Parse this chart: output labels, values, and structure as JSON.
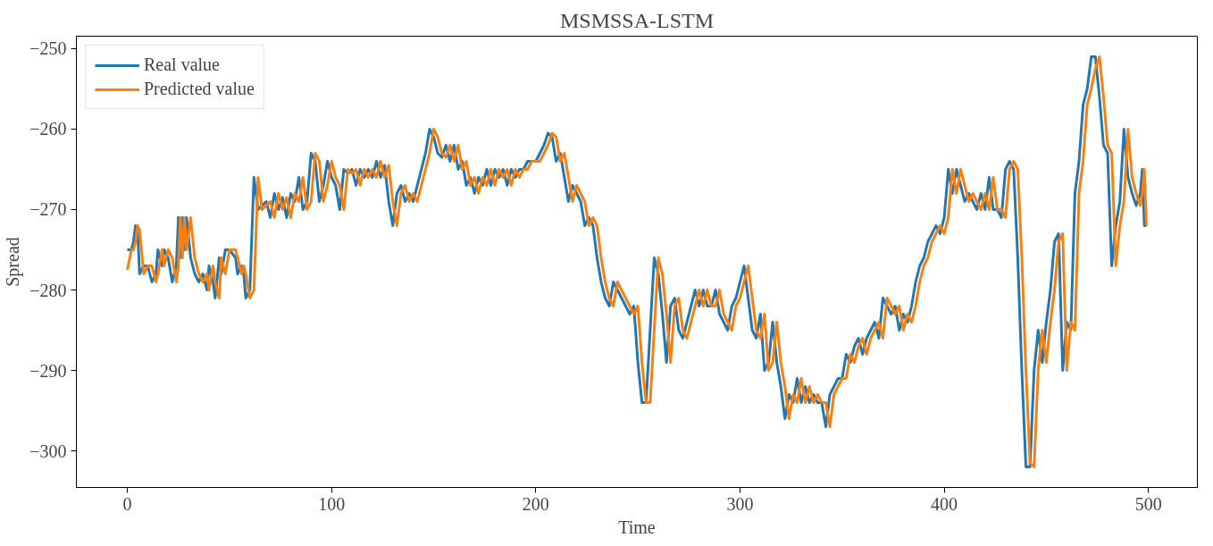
{
  "chart_data": {
    "type": "line",
    "title": "MSMSSA-LSTM",
    "xlabel": "Time",
    "ylabel": "Spread",
    "x": [
      0,
      2,
      3,
      4,
      5,
      6,
      8,
      10,
      12,
      14,
      15,
      17,
      18,
      20,
      22,
      24,
      25,
      26,
      27,
      28,
      29,
      31,
      33,
      35,
      37,
      39,
      40,
      42,
      43,
      45,
      46,
      48,
      50,
      53,
      54,
      56,
      57,
      58,
      60,
      62,
      64,
      66,
      68,
      70,
      72,
      74,
      76,
      78,
      80,
      82,
      84,
      86,
      88,
      90,
      92,
      94,
      96,
      98,
      100,
      102,
      104,
      106,
      108,
      110,
      112,
      114,
      116,
      118,
      120,
      122,
      124,
      126,
      128,
      130,
      132,
      134,
      136,
      138,
      140,
      142,
      144,
      146,
      148,
      150,
      152,
      154,
      156,
      158,
      160,
      162,
      164,
      166,
      168,
      170,
      172,
      174,
      176,
      178,
      180,
      182,
      184,
      186,
      188,
      190,
      192,
      194,
      196,
      198,
      200,
      202,
      204,
      206,
      208,
      210,
      212,
      214,
      216,
      218,
      220,
      222,
      224,
      226,
      228,
      230,
      232,
      234,
      236,
      238,
      240,
      242,
      244,
      246,
      248,
      250,
      252,
      254,
      256,
      258,
      260,
      262,
      264,
      266,
      268,
      270,
      272,
      274,
      276,
      278,
      280,
      282,
      284,
      286,
      288,
      290,
      292,
      294,
      296,
      298,
      300,
      302,
      304,
      306,
      308,
      310,
      312,
      314,
      316,
      318,
      320,
      322,
      324,
      326,
      328,
      330,
      332,
      334,
      336,
      338,
      340,
      342,
      344,
      346,
      348,
      350,
      352,
      354,
      356,
      358,
      360,
      362,
      364,
      366,
      368,
      370,
      372,
      374,
      376,
      378,
      380,
      382,
      384,
      386,
      388,
      390,
      392,
      394,
      396,
      398,
      400,
      402,
      404,
      406,
      408,
      410,
      412,
      414,
      416,
      418,
      420,
      422,
      424,
      426,
      428,
      430,
      432,
      434,
      436,
      438,
      440,
      442,
      444,
      446,
      448,
      450,
      452,
      454,
      456,
      458,
      460,
      462,
      464,
      466,
      468,
      470,
      472,
      474,
      476,
      478,
      480,
      482,
      484,
      486,
      488,
      490,
      492,
      494,
      496,
      497,
      498,
      499
    ],
    "series": [
      {
        "name": "Real value",
        "color": "#1f77b4",
        "values": [
          -275,
          -275,
          -274,
          -272,
          -272.5,
          -278,
          -277,
          -277,
          -279,
          -278,
          -275,
          -277,
          -275,
          -276,
          -279,
          -277,
          -271,
          -276,
          -271,
          -275,
          -271,
          -276,
          -278,
          -279,
          -278,
          -280,
          -277,
          -279,
          -281,
          -276,
          -278,
          -275,
          -275,
          -276,
          -278,
          -277,
          -278,
          -281,
          -280,
          -266,
          -270,
          -269.5,
          -269,
          -271,
          -268,
          -270,
          -268.5,
          -271,
          -268,
          -269,
          -266,
          -270,
          -269,
          -263,
          -264,
          -269,
          -267,
          -264,
          -266,
          -267,
          -270,
          -265,
          -265.5,
          -265,
          -267,
          -265,
          -266,
          -265,
          -266,
          -264,
          -266,
          -264.5,
          -269,
          -272,
          -268,
          -267,
          -269,
          -268,
          -269,
          -267,
          -265,
          -263,
          -260,
          -261,
          -263,
          -263.5,
          -262,
          -264,
          -262,
          -265,
          -264,
          -267,
          -266,
          -268,
          -266,
          -267,
          -265,
          -267,
          -265,
          -266,
          -265,
          -267,
          -265,
          -266,
          -265,
          -265,
          -264,
          -264,
          -264,
          -263,
          -262,
          -260.5,
          -261,
          -264,
          -263,
          -266,
          -269,
          -267,
          -268,
          -269,
          -272,
          -271,
          -272,
          -276,
          -279,
          -281,
          -282,
          -279,
          -280,
          -281,
          -282,
          -283,
          -282,
          -289,
          -294,
          -294,
          -285,
          -276,
          -278,
          -283,
          -289,
          -282,
          -281,
          -285,
          -286,
          -284,
          -282,
          -280,
          -282,
          -280,
          -282,
          -282,
          -280,
          -283,
          -284,
          -285,
          -282,
          -281,
          -279,
          -277,
          -281,
          -285,
          -286,
          -283,
          -290,
          -289,
          -284,
          -289,
          -292,
          -296,
          -293,
          -294,
          -291,
          -294,
          -292,
          -294,
          -293,
          -294,
          -294,
          -297,
          -293,
          -292,
          -291,
          -291,
          -288,
          -289,
          -287,
          -286,
          -288,
          -286,
          -285,
          -284,
          -286,
          -281,
          -282,
          -283,
          -282,
          -285,
          -283,
          -284,
          -282,
          -279,
          -277,
          -276,
          -274,
          -273,
          -272,
          -273,
          -271,
          -265,
          -268,
          -265,
          -267,
          -269,
          -268,
          -269,
          -270,
          -268,
          -270,
          -266,
          -270,
          -270,
          -271,
          -265,
          -264,
          -265,
          -276,
          -290,
          -302,
          -302,
          -290,
          -285,
          -289,
          -284,
          -280,
          -274,
          -273,
          -290,
          -284,
          -285,
          -268,
          -264,
          -257,
          -255,
          -251,
          -251,
          -256,
          -262,
          -263,
          -277,
          -272,
          -269,
          -260,
          -266,
          -268,
          -269.5,
          -268,
          -265,
          -272,
          -272
        ]
      },
      {
        "name": "Predicted value",
        "color": "#ff7f0e",
        "values": [
          -277.5,
          -275,
          -275,
          -274,
          -272,
          -272.5,
          -278,
          -277,
          -277,
          -279,
          -278,
          -275,
          -277,
          -275,
          -276,
          -279,
          -277,
          -271,
          -276,
          -271,
          -275,
          -271,
          -276,
          -278,
          -279,
          -278,
          -280,
          -277,
          -279,
          -281,
          -276,
          -278,
          -275,
          -275,
          -276,
          -278,
          -277,
          -278,
          -281,
          -280,
          -266,
          -270,
          -269.5,
          -269,
          -271,
          -268,
          -270,
          -268.5,
          -271,
          -268,
          -269,
          -266,
          -270,
          -269,
          -263,
          -264,
          -269,
          -267,
          -264,
          -266,
          -267,
          -270,
          -265,
          -265.5,
          -265,
          -267,
          -265,
          -266,
          -265,
          -266,
          -264,
          -266,
          -264.5,
          -269,
          -272,
          -268,
          -267,
          -269,
          -268,
          -269,
          -267,
          -265,
          -263,
          -260,
          -261,
          -263,
          -263.5,
          -262,
          -264,
          -262,
          -265,
          -264,
          -267,
          -266,
          -268,
          -266,
          -267,
          -265,
          -267,
          -265,
          -266,
          -265,
          -267,
          -265,
          -266,
          -265,
          -265,
          -264,
          -264,
          -264,
          -263,
          -262,
          -260.5,
          -261,
          -264,
          -263,
          -266,
          -269,
          -267,
          -268,
          -269,
          -272,
          -271,
          -272,
          -276,
          -279,
          -281,
          -282,
          -279,
          -280,
          -281,
          -282,
          -283,
          -282,
          -289,
          -294,
          -294,
          -285,
          -276,
          -278,
          -283,
          -289,
          -282,
          -281,
          -285,
          -286,
          -284,
          -282,
          -280,
          -282,
          -280,
          -282,
          -282,
          -280,
          -283,
          -284,
          -285,
          -282,
          -281,
          -279,
          -277,
          -281,
          -285,
          -286,
          -283,
          -290,
          -289,
          -284,
          -289,
          -292,
          -296,
          -293,
          -294,
          -291,
          -294,
          -292,
          -294,
          -293,
          -294,
          -294,
          -297,
          -293,
          -292,
          -291,
          -291,
          -288,
          -289,
          -287,
          -286,
          -288,
          -286,
          -285,
          -284,
          -286,
          -281,
          -282,
          -283,
          -282,
          -285,
          -283,
          -284,
          -282,
          -279,
          -277,
          -276,
          -274,
          -273,
          -272,
          -273,
          -271,
          -265,
          -268,
          -265,
          -267,
          -269,
          -268,
          -269,
          -270,
          -268,
          -270,
          -266,
          -270,
          -270,
          -271,
          -265,
          -264,
          -265,
          -276,
          -290,
          -301.5,
          -302,
          -290,
          -285,
          -289,
          -284,
          -280,
          -274,
          -273,
          -290,
          -284,
          -285,
          -268,
          -264,
          -257,
          -255,
          -252.5,
          -251,
          -256,
          -262,
          -263,
          -277,
          -272,
          -269,
          -260,
          -266,
          -268,
          -269.5,
          -268,
          -265,
          -272
        ]
      }
    ],
    "xlim": [
      -24.95,
      523.95
    ],
    "ylim": [
      -304.55,
      -248.45
    ],
    "xticks": [
      0,
      100,
      200,
      300,
      400,
      500
    ],
    "yticks": [
      {
        "value": -300,
        "label": "−300"
      },
      {
        "value": -290,
        "label": "−290"
      },
      {
        "value": -280,
        "label": "−280"
      },
      {
        "value": -270,
        "label": "−270"
      },
      {
        "value": -260,
        "label": "−260"
      },
      {
        "value": -250,
        "label": "−250"
      }
    ],
    "grid": false,
    "legend": "top left",
    "marker": "none",
    "line_style": "solid"
  }
}
